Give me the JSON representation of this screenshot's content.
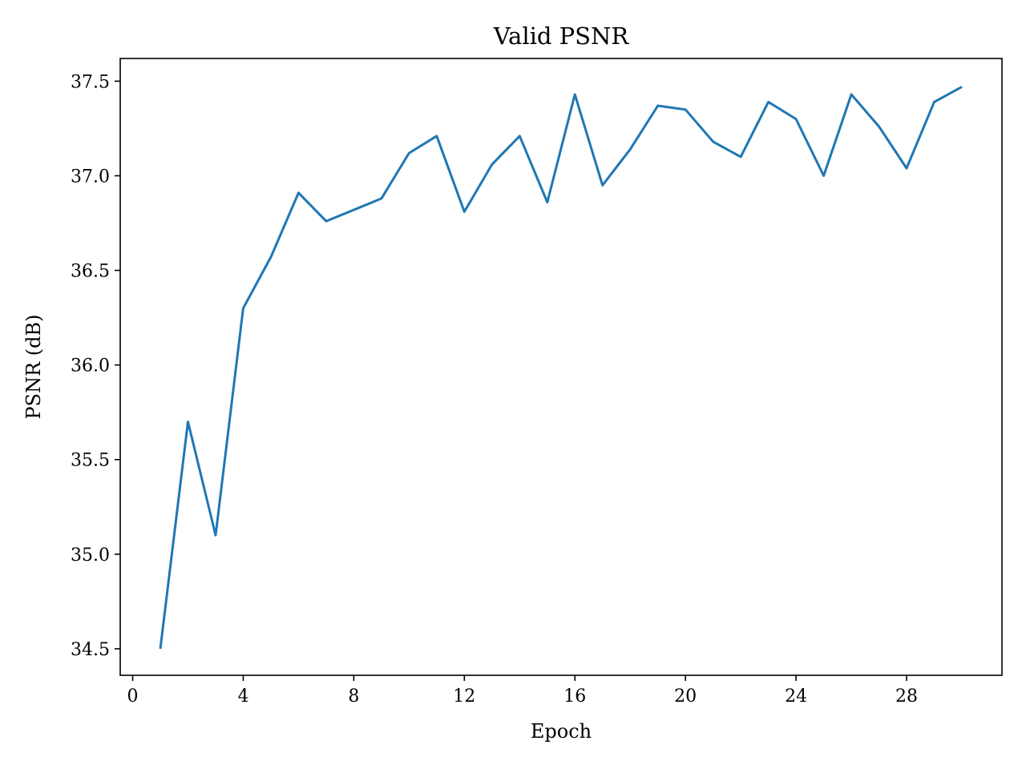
{
  "chart_data": {
    "type": "line",
    "title": "Valid PSNR",
    "xlabel": "Epoch",
    "ylabel": "PSNR (dB)",
    "xlim": [
      -0.45,
      31.45
    ],
    "ylim": [
      34.36,
      37.62
    ],
    "xticks": [
      0,
      4,
      8,
      12,
      16,
      20,
      24,
      28
    ],
    "xtick_labels": [
      "0",
      "4",
      "8",
      "12",
      "16",
      "20",
      "24",
      "28"
    ],
    "yticks": [
      34.5,
      35.0,
      35.5,
      36.0,
      36.5,
      37.0,
      37.5
    ],
    "ytick_labels": [
      "34.5",
      "35.0",
      "35.5",
      "36.0",
      "36.5",
      "37.0",
      "37.5"
    ],
    "grid": false,
    "series": [
      {
        "color": "#1f77b4",
        "x": [
          1,
          2,
          3,
          4,
          5,
          6,
          7,
          8,
          9,
          10,
          11,
          12,
          13,
          14,
          15,
          16,
          17,
          18,
          19,
          20,
          21,
          22,
          23,
          24,
          25,
          26,
          27,
          28,
          29,
          30
        ],
        "y": [
          34.5,
          35.7,
          35.1,
          36.3,
          36.57,
          36.91,
          36.76,
          36.82,
          36.88,
          37.12,
          37.21,
          36.81,
          37.06,
          37.21,
          36.86,
          37.43,
          36.95,
          37.14,
          37.37,
          37.35,
          37.18,
          37.1,
          37.39,
          37.3,
          37.0,
          37.43,
          37.26,
          37.04,
          37.39,
          37.47
        ]
      }
    ]
  }
}
